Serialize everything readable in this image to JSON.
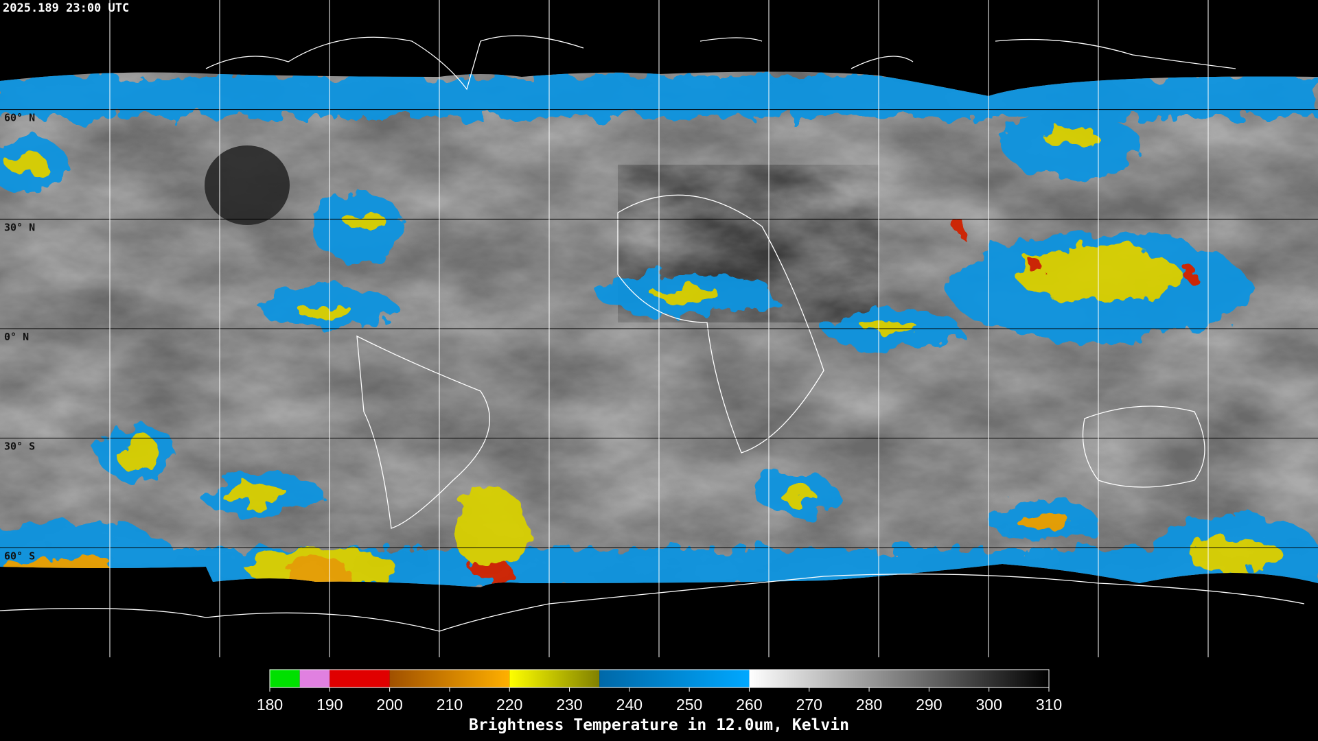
{
  "header": {
    "timestamp": "2025.189 23:00 UTC"
  },
  "map": {
    "lat_lines": [
      {
        "value": 60,
        "label": "60° N"
      },
      {
        "value": 30,
        "label": "30° N"
      },
      {
        "value": 0,
        "label": "0° N"
      },
      {
        "value": -30,
        "label": "30° S"
      },
      {
        "value": -60,
        "label": "60° S"
      }
    ],
    "lon_lines": [
      -150,
      -120,
      -90,
      -60,
      -30,
      0,
      30,
      60,
      90,
      120,
      150
    ]
  },
  "colorbar": {
    "title": "Brightness Temperature in 12.0um, Kelvin",
    "range": [
      180,
      310
    ],
    "ticks": [
      180,
      190,
      200,
      210,
      220,
      230,
      240,
      250,
      260,
      270,
      280,
      290,
      300,
      310
    ],
    "segments": [
      {
        "from": 180,
        "to": 185,
        "colors": [
          "#00e000",
          "#00e000"
        ]
      },
      {
        "from": 185,
        "to": 190,
        "colors": [
          "#e080e0",
          "#e080e0"
        ]
      },
      {
        "from": 190,
        "to": 200,
        "colors": [
          "#e00000",
          "#e00000"
        ]
      },
      {
        "from": 200,
        "to": 220,
        "colors": [
          "#a05000",
          "#ffb000"
        ]
      },
      {
        "from": 220,
        "to": 235,
        "colors": [
          "#ffff00",
          "#808000"
        ]
      },
      {
        "from": 235,
        "to": 260,
        "colors": [
          "#0068a8",
          "#00a8ff"
        ]
      },
      {
        "from": 260,
        "to": 310,
        "colors": [
          "#ffffff",
          "#000000"
        ]
      }
    ]
  }
}
